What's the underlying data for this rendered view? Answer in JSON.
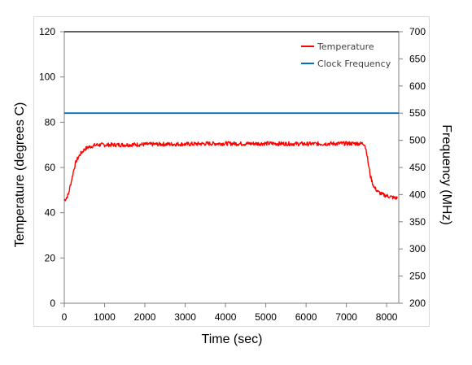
{
  "chart_data": {
    "type": "line",
    "x_label": "Time (sec)",
    "y_label_left": "Temperature (degrees C)",
    "y_label_right": "Frequency (MHz)",
    "xlim": [
      0,
      8300
    ],
    "ylim_left": [
      0,
      120
    ],
    "ylim_right": [
      200,
      700
    ],
    "x_ticks": [
      "0",
      "1000",
      "2000",
      "3000",
      "4000",
      "5000",
      "6000",
      "7000",
      "8000"
    ],
    "y_ticks_left": [
      "0",
      "20",
      "40",
      "60",
      "80",
      "100",
      "120"
    ],
    "y_ticks_right": [
      "200",
      "250",
      "300",
      "350",
      "400",
      "450",
      "500",
      "550",
      "600",
      "650",
      "700"
    ],
    "legend_position": "top-right",
    "grid": false,
    "series": [
      {
        "name": "Temperature",
        "axis": "left",
        "color": "#ff0000",
        "x": [
          0,
          50,
          100,
          150,
          200,
          250,
          300,
          400,
          500,
          600,
          700,
          800,
          1000,
          1200,
          1500,
          2000,
          2500,
          3000,
          3500,
          4000,
          4500,
          5000,
          5500,
          6000,
          6500,
          7000,
          7300,
          7450,
          7500,
          7550,
          7600,
          7650,
          7700,
          7750,
          7800,
          7900,
          8000,
          8100,
          8200,
          8270
        ],
        "values": [
          45.5,
          46.5,
          48,
          52,
          56,
          60,
          63,
          66,
          68,
          69,
          69.5,
          70,
          70,
          70,
          70,
          70.2,
          70.3,
          70.3,
          70.5,
          70.6,
          70.5,
          70.6,
          70.5,
          70.4,
          70.5,
          70.6,
          70.6,
          70.5,
          67,
          61,
          56,
          53,
          51,
          50,
          49,
          48,
          47.5,
          47,
          46.5,
          46.5
        ]
      },
      {
        "name": "Clock Frequency",
        "axis": "right",
        "color": "#0070c0",
        "x": [
          0,
          8300
        ],
        "values": [
          550,
          550
        ]
      }
    ],
    "top_reference_line_color": "#000000"
  }
}
